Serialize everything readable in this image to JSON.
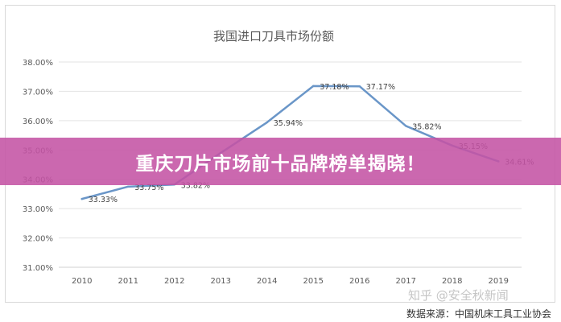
{
  "banner": {
    "text": "重庆刀片市场前十品牌榜单揭晓！"
  },
  "watermark": {
    "text": "知乎 @安全秋新闻"
  },
  "source": {
    "text": "数据来源：中国机床工具工业协会"
  },
  "colors": {
    "line": "#6a96c8",
    "banner": "#c453a4",
    "grid": "#e3e3e3",
    "axis": "#d0d0d0"
  },
  "chart_data": {
    "type": "line",
    "title": "我国进口刀具市场份额",
    "xlabel": "",
    "ylabel": "",
    "categories": [
      "2010",
      "2011",
      "2012",
      "2013",
      "2014",
      "2015",
      "2016",
      "2017",
      "2018",
      "2019"
    ],
    "series": [
      {
        "values": [
          33.33,
          33.75,
          33.82,
          34.9,
          35.94,
          37.18,
          37.17,
          35.82,
          35.15,
          34.61
        ],
        "data_labels": [
          "33.33%",
          "33.75%",
          "33.82%",
          "",
          "35.94%",
          "37.18%",
          "37.17%",
          "35.82%",
          "35.15%",
          "34.61%"
        ]
      }
    ],
    "ylim": [
      31,
      38
    ],
    "yticks": [
      "31.00%",
      "32.00%",
      "33.00%",
      "34.00%",
      "35.00%",
      "36.00%",
      "37.00%",
      "38.00%"
    ],
    "grid": true,
    "legend": "none"
  }
}
